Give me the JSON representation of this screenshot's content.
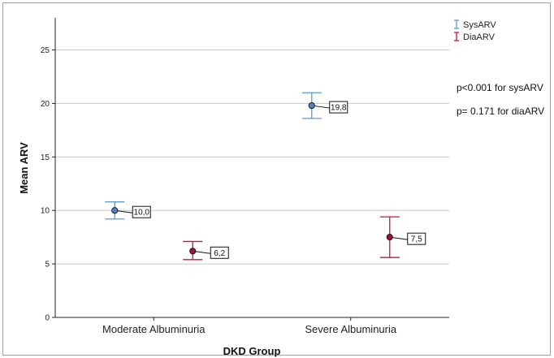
{
  "colors": {
    "sys": "#5b9bd5",
    "sys_marker": "#4a86c7",
    "dia": "#c8143c",
    "dia_marker": "#a01030",
    "grid": "#c8c8c8",
    "frame": "#58b6e6"
  },
  "chart_data": {
    "type": "scatter",
    "subtype": "error-bar",
    "xlabel": "DKD Group",
    "ylabel": "Mean ARV",
    "categories": [
      "Moderate Albuminuria",
      "Severe Albuminuria"
    ],
    "ylim": [
      0,
      28
    ],
    "yticks": [
      "0",
      "5",
      "10",
      "15",
      "20",
      "25"
    ],
    "grid": true,
    "legend_position": "top-right",
    "series": [
      {
        "name": "SysARV",
        "values": [
          10.0,
          19.8
        ],
        "lower": [
          9.2,
          18.6
        ],
        "upper": [
          10.8,
          21.0
        ],
        "labels": [
          "10,0",
          "19,8"
        ]
      },
      {
        "name": "DiaARV",
        "values": [
          6.2,
          7.5
        ],
        "lower": [
          5.4,
          5.6
        ],
        "upper": [
          7.1,
          9.4
        ],
        "labels": [
          "6,2",
          "7,5"
        ]
      }
    ],
    "annotations": [
      "p<0.001 for sysARV",
      "p= 0.171 for diaARV"
    ]
  }
}
